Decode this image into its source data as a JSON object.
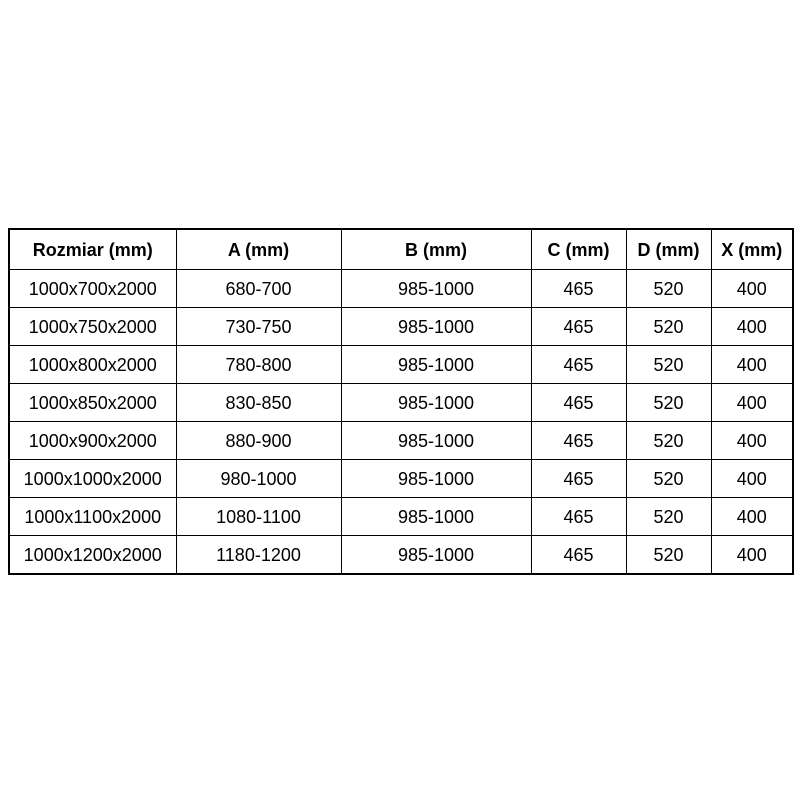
{
  "table": {
    "headers": [
      "Rozmiar (mm)",
      "A (mm)",
      "B (mm)",
      "C (mm)",
      "D (mm)",
      "X (mm)"
    ],
    "rows": [
      [
        "1000x700x2000",
        "680-700",
        "985-1000",
        "465",
        "520",
        "400"
      ],
      [
        "1000x750x2000",
        "730-750",
        "985-1000",
        "465",
        "520",
        "400"
      ],
      [
        "1000x800x2000",
        "780-800",
        "985-1000",
        "465",
        "520",
        "400"
      ],
      [
        "1000x850x2000",
        "830-850",
        "985-1000",
        "465",
        "520",
        "400"
      ],
      [
        "1000x900x2000",
        "880-900",
        "985-1000",
        "465",
        "520",
        "400"
      ],
      [
        "1000x1000x2000",
        "980-1000",
        "985-1000",
        "465",
        "520",
        "400"
      ],
      [
        "1000x1100x2000",
        "1080-1100",
        "985-1000",
        "465",
        "520",
        "400"
      ],
      [
        "1000x1200x2000",
        "1180-1200",
        "985-1000",
        "465",
        "520",
        "400"
      ]
    ],
    "colors": {
      "border": "#000000",
      "text": "#000000",
      "background": "#ffffff"
    }
  }
}
